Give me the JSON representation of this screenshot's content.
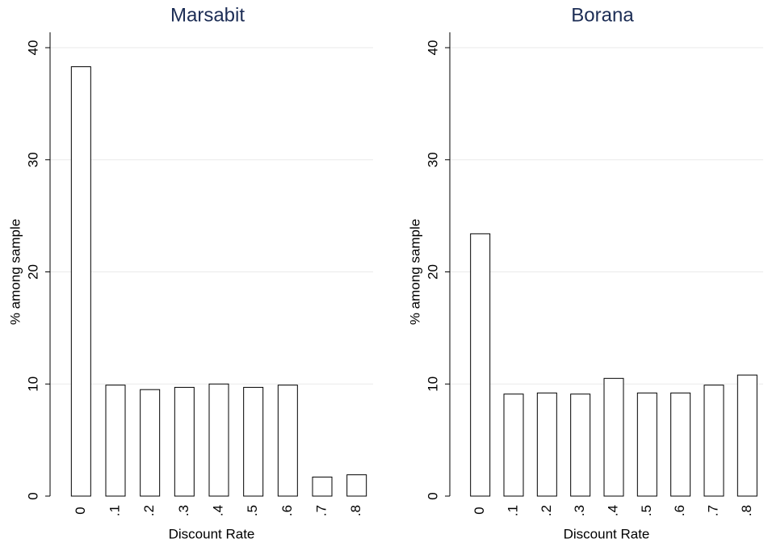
{
  "chart_data": [
    {
      "type": "bar",
      "title": "Marsabit",
      "x_label": "Discount Rate",
      "y_label": "% among sample",
      "categories": [
        "0",
        ".1",
        ".2",
        ".3",
        ".4",
        ".5",
        ".6",
        ".7",
        ".8"
      ],
      "values": [
        38.3,
        9.9,
        9.5,
        9.7,
        10.0,
        9.7,
        9.9,
        1.7,
        1.9
      ],
      "color": "#ffffff",
      "ylim": [
        0,
        40
      ],
      "yticks": [
        0,
        10,
        20,
        30,
        40
      ],
      "grid": true
    },
    {
      "type": "bar",
      "title": "Borana",
      "x_label": "Discount Rate",
      "y_label": "% among sample",
      "categories": [
        "0",
        ".1",
        ".2",
        ".3",
        ".4",
        ".5",
        ".6",
        ".7",
        ".8"
      ],
      "values": [
        23.4,
        9.1,
        9.2,
        9.1,
        10.5,
        9.2,
        9.2,
        9.9,
        10.8
      ],
      "color": "#ffffff",
      "ylim": [
        0,
        40
      ],
      "yticks": [
        0,
        10,
        20,
        30,
        40
      ],
      "grid": true
    }
  ]
}
